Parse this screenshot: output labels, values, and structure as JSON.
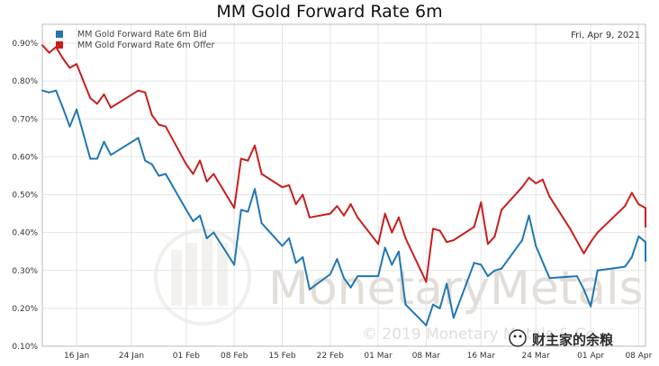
{
  "chart_data": {
    "type": "line",
    "title": "MM Gold Forward Rate 6m",
    "date_label": "Fri, Apr 9, 2021",
    "ylim": [
      0.1,
      0.95
    ],
    "y_ticks": [
      {
        "value": 0.1,
        "label": "0.10%"
      },
      {
        "value": 0.2,
        "label": "0.20%"
      },
      {
        "value": 0.3,
        "label": "0.30%"
      },
      {
        "value": 0.4,
        "label": "0.40%"
      },
      {
        "value": 0.5,
        "label": "0.50%"
      },
      {
        "value": 0.6,
        "label": "0.60%"
      },
      {
        "value": 0.7,
        "label": "0.70%"
      },
      {
        "value": 0.8,
        "label": "0.80%"
      },
      {
        "value": 0.9,
        "label": "0.90%"
      }
    ],
    "xlim": [
      "2021-01-11",
      "2021-04-09"
    ],
    "x_ticks": [
      {
        "date": "2021-01-16",
        "label": "16 Jan"
      },
      {
        "date": "2021-01-24",
        "label": "24 Jan"
      },
      {
        "date": "2021-02-01",
        "label": "01 Feb"
      },
      {
        "date": "2021-02-08",
        "label": "08 Feb"
      },
      {
        "date": "2021-02-15",
        "label": "15 Feb"
      },
      {
        "date": "2021-02-22",
        "label": "22 Feb"
      },
      {
        "date": "2021-03-01",
        "label": "01 Mar"
      },
      {
        "date": "2021-03-08",
        "label": "08 Mar"
      },
      {
        "date": "2021-03-16",
        "label": "16 Mar"
      },
      {
        "date": "2021-03-24",
        "label": "24 Mar"
      },
      {
        "date": "2021-04-01",
        "label": "01 Apr"
      },
      {
        "date": "2021-04-08",
        "label": "08 Apr"
      }
    ],
    "grid": true,
    "legend_position": "top-left",
    "series": [
      {
        "name": "MM Gold Forward Rate 6m Bid",
        "color": "#1f77b4",
        "points": [
          [
            "2021-01-11",
            0.775
          ],
          [
            "2021-01-12",
            0.77
          ],
          [
            "2021-01-13",
            0.775
          ],
          [
            "2021-01-14",
            0.73
          ],
          [
            "2021-01-15",
            0.68
          ],
          [
            "2021-01-16",
            0.725
          ],
          [
            "2021-01-17",
            0.66
          ],
          [
            "2021-01-18",
            0.595
          ],
          [
            "2021-01-19",
            0.595
          ],
          [
            "2021-01-20",
            0.64
          ],
          [
            "2021-01-21",
            0.605
          ],
          [
            "2021-01-25",
            0.65
          ],
          [
            "2021-01-26",
            0.59
          ],
          [
            "2021-01-27",
            0.58
          ],
          [
            "2021-01-28",
            0.55
          ],
          [
            "2021-01-29",
            0.555
          ],
          [
            "2021-02-01",
            0.46
          ],
          [
            "2021-02-02",
            0.43
          ],
          [
            "2021-02-03",
            0.445
          ],
          [
            "2021-02-04",
            0.385
          ],
          [
            "2021-02-05",
            0.4
          ],
          [
            "2021-02-08",
            0.315
          ],
          [
            "2021-02-09",
            0.46
          ],
          [
            "2021-02-10",
            0.455
          ],
          [
            "2021-02-11",
            0.515
          ],
          [
            "2021-02-12",
            0.425
          ],
          [
            "2021-02-15",
            0.365
          ],
          [
            "2021-02-16",
            0.385
          ],
          [
            "2021-02-17",
            0.32
          ],
          [
            "2021-02-18",
            0.335
          ],
          [
            "2021-02-19",
            0.25
          ],
          [
            "2021-02-22",
            0.29
          ],
          [
            "2021-02-23",
            0.33
          ],
          [
            "2021-02-24",
            0.28
          ],
          [
            "2021-02-25",
            0.255
          ],
          [
            "2021-02-26",
            0.285
          ],
          [
            "2021-03-01",
            0.285
          ],
          [
            "2021-03-02",
            0.36
          ],
          [
            "2021-03-03",
            0.315
          ],
          [
            "2021-03-04",
            0.35
          ],
          [
            "2021-03-05",
            0.21
          ],
          [
            "2021-03-08",
            0.155
          ],
          [
            "2021-03-09",
            0.21
          ],
          [
            "2021-03-10",
            0.2
          ],
          [
            "2021-03-11",
            0.265
          ],
          [
            "2021-03-12",
            0.175
          ],
          [
            "2021-03-15",
            0.32
          ],
          [
            "2021-03-16",
            0.315
          ],
          [
            "2021-03-17",
            0.285
          ],
          [
            "2021-03-18",
            0.3
          ],
          [
            "2021-03-19",
            0.305
          ],
          [
            "2021-03-22",
            0.38
          ],
          [
            "2021-03-23",
            0.445
          ],
          [
            "2021-03-24",
            0.365
          ],
          [
            "2021-03-26",
            0.28
          ],
          [
            "2021-03-30",
            0.285
          ],
          [
            "2021-03-31",
            0.25
          ],
          [
            "2021-04-01",
            0.205
          ],
          [
            "2021-04-02",
            0.3
          ],
          [
            "2021-04-06",
            0.31
          ],
          [
            "2021-04-07",
            0.335
          ],
          [
            "2021-04-08",
            0.39
          ],
          [
            "2021-04-09",
            0.375
          ],
          [
            "2021-04-10",
            0.325
          ]
        ]
      },
      {
        "name": "MM Gold Forward Rate 6m Offer",
        "color": "#c81e1e",
        "points": [
          [
            "2021-01-11",
            0.895
          ],
          [
            "2021-01-12",
            0.875
          ],
          [
            "2021-01-13",
            0.89
          ],
          [
            "2021-01-14",
            0.86
          ],
          [
            "2021-01-15",
            0.835
          ],
          [
            "2021-01-16",
            0.845
          ],
          [
            "2021-01-17",
            0.8
          ],
          [
            "2021-01-18",
            0.755
          ],
          [
            "2021-01-19",
            0.74
          ],
          [
            "2021-01-20",
            0.765
          ],
          [
            "2021-01-21",
            0.73
          ],
          [
            "2021-01-25",
            0.775
          ],
          [
            "2021-01-26",
            0.77
          ],
          [
            "2021-01-27",
            0.71
          ],
          [
            "2021-01-28",
            0.685
          ],
          [
            "2021-01-29",
            0.68
          ],
          [
            "2021-02-01",
            0.58
          ],
          [
            "2021-02-02",
            0.555
          ],
          [
            "2021-02-03",
            0.59
          ],
          [
            "2021-02-04",
            0.535
          ],
          [
            "2021-02-05",
            0.555
          ],
          [
            "2021-02-08",
            0.465
          ],
          [
            "2021-02-09",
            0.595
          ],
          [
            "2021-02-10",
            0.59
          ],
          [
            "2021-02-11",
            0.63
          ],
          [
            "2021-02-12",
            0.555
          ],
          [
            "2021-02-15",
            0.52
          ],
          [
            "2021-02-16",
            0.525
          ],
          [
            "2021-02-17",
            0.475
          ],
          [
            "2021-02-18",
            0.5
          ],
          [
            "2021-02-19",
            0.44
          ],
          [
            "2021-02-22",
            0.45
          ],
          [
            "2021-02-23",
            0.47
          ],
          [
            "2021-02-24",
            0.445
          ],
          [
            "2021-02-25",
            0.475
          ],
          [
            "2021-02-26",
            0.44
          ],
          [
            "2021-03-01",
            0.37
          ],
          [
            "2021-03-02",
            0.45
          ],
          [
            "2021-03-03",
            0.4
          ],
          [
            "2021-03-04",
            0.44
          ],
          [
            "2021-03-05",
            0.385
          ],
          [
            "2021-03-08",
            0.27
          ],
          [
            "2021-03-09",
            0.41
          ],
          [
            "2021-03-10",
            0.405
          ],
          [
            "2021-03-11",
            0.375
          ],
          [
            "2021-03-12",
            0.38
          ],
          [
            "2021-03-15",
            0.415
          ],
          [
            "2021-03-16",
            0.48
          ],
          [
            "2021-03-17",
            0.37
          ],
          [
            "2021-03-18",
            0.39
          ],
          [
            "2021-03-19",
            0.46
          ],
          [
            "2021-03-22",
            0.52
          ],
          [
            "2021-03-23",
            0.545
          ],
          [
            "2021-03-24",
            0.53
          ],
          [
            "2021-03-25",
            0.54
          ],
          [
            "2021-03-26",
            0.495
          ],
          [
            "2021-03-29",
            0.41
          ],
          [
            "2021-03-31",
            0.345
          ],
          [
            "2021-04-01",
            0.375
          ],
          [
            "2021-04-02",
            0.4
          ],
          [
            "2021-04-06",
            0.47
          ],
          [
            "2021-04-07",
            0.505
          ],
          [
            "2021-04-08",
            0.475
          ],
          [
            "2021-04-09",
            0.465
          ],
          [
            "2021-04-10",
            0.415
          ]
        ]
      }
    ]
  },
  "watermark": {
    "brand": "MonetaryMetals",
    "copyright": "© 2019 Monetary Metals & Co.",
    "overlay_text": "财主家的余粮"
  }
}
